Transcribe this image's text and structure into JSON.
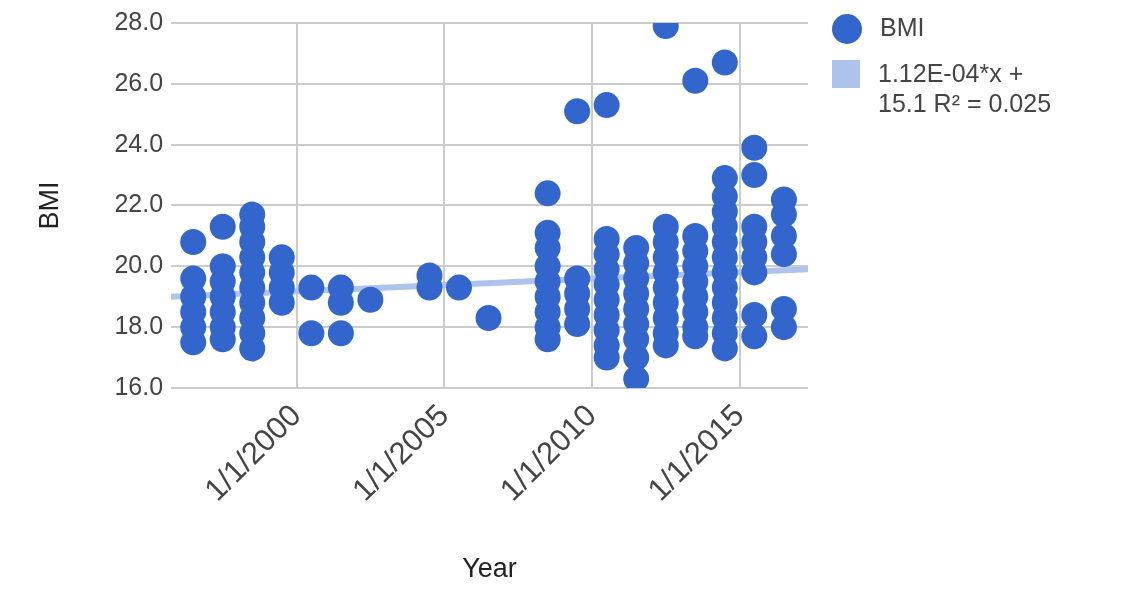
{
  "chart_data": {
    "type": "scatter",
    "xlabel": "Year",
    "ylabel": "BMI",
    "xlim": [
      "1995-10-01",
      "2017-04-25"
    ],
    "xticks": [
      {
        "value": "2000-01-01",
        "label": "1/1/2000"
      },
      {
        "value": "2005-01-01",
        "label": "1/1/2005"
      },
      {
        "value": "2010-01-01",
        "label": "1/1/2010"
      },
      {
        "value": "2015-01-01",
        "label": "1/1/2015"
      }
    ],
    "ylim": [
      16,
      28
    ],
    "yticks": [
      {
        "value": 16,
        "label": "16.0"
      },
      {
        "value": 18,
        "label": "18.0"
      },
      {
        "value": 20,
        "label": "20.0"
      },
      {
        "value": 22,
        "label": "22.0"
      },
      {
        "value": 24,
        "label": "24.0"
      },
      {
        "value": 26,
        "label": "26.0"
      },
      {
        "value": 28,
        "label": "28.0"
      }
    ],
    "grid": true,
    "legend": "top right",
    "series": [
      {
        "name": "BMI",
        "color": "#3366cc",
        "marker": "circle",
        "x": [
          "1996-07-01",
          "1996-07-01",
          "1996-07-01",
          "1996-07-01",
          "1996-07-01",
          "1996-07-01",
          "1997-07-01",
          "1997-07-01",
          "1997-07-01",
          "1997-07-01",
          "1997-07-01",
          "1997-07-01",
          "1997-07-01",
          "1998-07-01",
          "1998-07-01",
          "1998-07-01",
          "1998-07-01",
          "1998-07-01",
          "1998-07-01",
          "1998-07-01",
          "1998-07-01",
          "1998-07-01",
          "1998-07-01",
          "1999-07-01",
          "1999-07-01",
          "1999-07-01",
          "1999-07-01",
          "2000-07-01",
          "2000-07-01",
          "2001-07-01",
          "2001-07-01",
          "2001-07-01",
          "2002-07-01",
          "2004-07-01",
          "2004-07-01",
          "2005-07-01",
          "2006-07-01",
          "2008-07-01",
          "2008-07-01",
          "2008-07-01",
          "2008-07-01",
          "2008-07-01",
          "2008-07-01",
          "2008-07-01",
          "2008-07-01",
          "2008-07-01",
          "2009-07-01",
          "2009-07-01",
          "2009-07-01",
          "2009-07-01",
          "2009-07-01",
          "2010-07-01",
          "2010-07-01",
          "2010-07-01",
          "2010-07-01",
          "2010-07-01",
          "2010-07-01",
          "2010-07-01",
          "2010-07-01",
          "2010-07-01",
          "2010-07-01",
          "2011-07-01",
          "2011-07-01",
          "2011-07-01",
          "2011-07-01",
          "2011-07-01",
          "2011-07-01",
          "2011-07-01",
          "2011-07-01",
          "2011-07-01",
          "2012-07-01",
          "2012-07-01",
          "2012-07-01",
          "2012-07-01",
          "2012-07-01",
          "2012-07-01",
          "2012-07-01",
          "2012-07-01",
          "2012-07-01",
          "2012-07-01",
          "2013-07-01",
          "2013-07-01",
          "2013-07-01",
          "2013-07-01",
          "2013-07-01",
          "2013-07-01",
          "2013-07-01",
          "2013-07-01",
          "2013-07-01",
          "2014-07-01",
          "2014-07-01",
          "2014-07-01",
          "2014-07-01",
          "2014-07-01",
          "2014-07-01",
          "2014-07-01",
          "2014-07-01",
          "2014-07-01",
          "2014-07-01",
          "2014-07-01",
          "2014-07-01",
          "2014-07-01",
          "2015-07-01",
          "2015-07-01",
          "2015-07-01",
          "2015-07-01",
          "2015-07-01",
          "2015-07-01",
          "2015-07-01",
          "2015-07-01",
          "2016-07-01",
          "2016-07-01",
          "2016-07-01",
          "2016-07-01",
          "2016-07-01",
          "2016-07-01"
        ],
        "values": [
          20.8,
          19.6,
          19.0,
          18.5,
          18.0,
          17.5,
          21.3,
          20.0,
          19.5,
          19.0,
          18.5,
          18.0,
          17.6,
          21.7,
          21.3,
          20.8,
          20.3,
          19.8,
          19.3,
          18.8,
          18.3,
          17.8,
          17.3,
          20.3,
          19.8,
          19.3,
          18.8,
          19.3,
          17.8,
          19.3,
          18.8,
          17.8,
          18.9,
          19.7,
          19.3,
          19.3,
          18.3,
          22.4,
          21.1,
          20.6,
          20.0,
          19.5,
          19.0,
          18.5,
          18.0,
          17.6,
          25.1,
          19.6,
          19.1,
          18.6,
          18.1,
          25.3,
          20.9,
          20.4,
          19.9,
          19.4,
          18.9,
          18.4,
          17.9,
          17.4,
          17.0,
          20.6,
          20.1,
          19.6,
          19.1,
          18.6,
          18.1,
          17.6,
          17.0,
          16.3,
          27.9,
          21.3,
          20.8,
          20.3,
          19.8,
          19.3,
          18.8,
          18.3,
          17.8,
          17.4,
          26.1,
          21.0,
          20.5,
          20.0,
          19.5,
          19.0,
          18.5,
          18.0,
          17.7,
          26.7,
          22.9,
          22.3,
          21.8,
          21.3,
          20.8,
          20.3,
          19.8,
          19.3,
          18.8,
          18.3,
          17.8,
          17.3,
          23.9,
          23.0,
          21.3,
          20.8,
          20.3,
          19.8,
          18.4,
          17.7,
          22.2,
          21.7,
          21.0,
          20.4,
          18.6,
          18.0
        ]
      },
      {
        "name": "1.12E-04*x + 15.1 R² = 0.025",
        "color": "#aec2ee",
        "type": "line",
        "marker": "none",
        "x": [
          "1995-10-01",
          "2017-04-25"
        ],
        "values": [
          19.0,
          19.9
        ]
      }
    ]
  }
}
